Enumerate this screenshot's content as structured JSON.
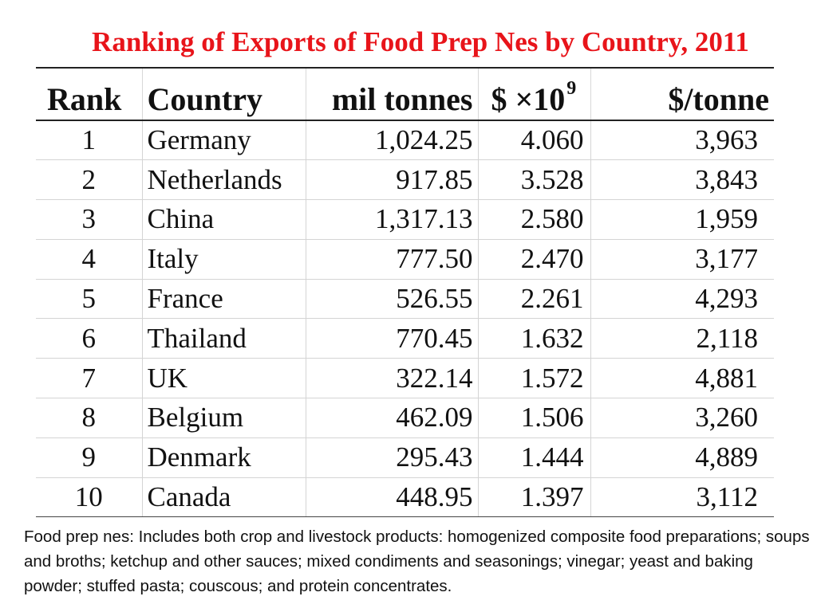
{
  "title": "Ranking of Exports of Food Prep Nes by Country, 2011",
  "headers": {
    "rank": "Rank",
    "country": "Country",
    "tonnes": "mil tonnes",
    "dollars": "$ ×10",
    "dollars_exp": "9",
    "per_tonne": "$/tonne"
  },
  "chart_data": {
    "type": "table",
    "title": "Ranking of Exports of Food Prep Nes by Country, 2011",
    "columns": [
      "Rank",
      "Country",
      "mil tonnes",
      "$ ×10^9",
      "$/tonne"
    ],
    "rows": [
      [
        "1",
        "Germany",
        "1,024.25",
        "4.060",
        "3,963"
      ],
      [
        "2",
        "Netherlands",
        "917.85",
        "3.528",
        "3,843"
      ],
      [
        "3",
        "China",
        "1,317.13",
        "2.580",
        "1,959"
      ],
      [
        "4",
        "Italy",
        "777.50",
        "2.470",
        "3,177"
      ],
      [
        "5",
        "France",
        "526.55",
        "2.261",
        "4,293"
      ],
      [
        "6",
        "Thailand",
        "770.45",
        "1.632",
        "2,118"
      ],
      [
        "7",
        "UK",
        "322.14",
        "1.572",
        "4,881"
      ],
      [
        "8",
        "Belgium",
        "462.09",
        "1.506",
        "3,260"
      ],
      [
        "9",
        "Denmark",
        "295.43",
        "1.444",
        "4,889"
      ],
      [
        "10",
        "Canada",
        "448.95",
        "1.397",
        "3,112"
      ]
    ]
  },
  "footnote": "Food prep nes: Includes both crop and livestock products: homogenized composite food preparations; soups and broths; ketchup and other sauces; mixed condiments and seasonings; vinegar; yeast and baking powder; stuffed pasta; couscous; and protein concentrates.",
  "colors": {
    "title": "#e8141a"
  }
}
